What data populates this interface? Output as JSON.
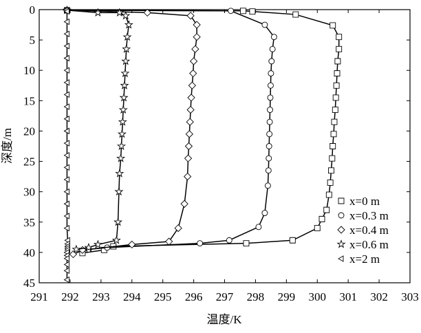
{
  "chart_data": {
    "type": "line",
    "xlabel": "温度/K",
    "ylabel": "深度/m",
    "xlim": [
      291,
      303
    ],
    "xticks": [
      291,
      292,
      293,
      294,
      295,
      296,
      297,
      298,
      299,
      300,
      301,
      302,
      303
    ],
    "ylim": [
      0,
      45
    ],
    "yticks": [
      0,
      5,
      10,
      15,
      20,
      25,
      30,
      35,
      40,
      45
    ],
    "y_inverted": true,
    "legend": "lower right",
    "color": "#000000",
    "series": [
      {
        "name": "x=0 m",
        "marker": "square",
        "x": [
          291.9,
          297.6,
          297.9,
          299.3,
          300.5,
          300.7,
          300.7,
          300.66,
          300.64,
          300.62,
          300.6,
          300.58,
          300.55,
          300.53,
          300.5,
          300.48,
          300.45,
          300.42,
          300.38,
          300.3,
          300.15,
          300.0,
          299.2,
          297.7,
          293.4,
          293.1,
          292.4
        ],
        "y": [
          0.1,
          0.2,
          0.3,
          0.8,
          2.6,
          4.5,
          6.5,
          8.5,
          10.5,
          12.5,
          14.5,
          16.5,
          18.5,
          20.5,
          22.5,
          24.5,
          26.5,
          28.5,
          30.5,
          33,
          34.5,
          36,
          38,
          38.5,
          39,
          39.6,
          40.1
        ]
      },
      {
        "name": "x=0.3 m",
        "marker": "circle",
        "x": [
          291.9,
          297.2,
          298.3,
          298.6,
          298.55,
          298.52,
          298.5,
          298.49,
          298.48,
          298.47,
          298.46,
          298.45,
          298.44,
          298.43,
          298.42,
          298.4,
          298.3,
          298.1,
          297.15,
          296.2,
          293.2,
          292.6
        ],
        "y": [
          0.1,
          0.2,
          2.5,
          4.5,
          6.5,
          8.5,
          10.5,
          12.5,
          14.5,
          16.5,
          18.5,
          20.5,
          22.5,
          24.5,
          26.5,
          29,
          33.5,
          35.8,
          38,
          38.5,
          39.2,
          39.5
        ]
      },
      {
        "name": "x=0.4 m",
        "marker": "diamond",
        "x": [
          291.9,
          294.5,
          295.9,
          296.1,
          296.1,
          296.05,
          296.0,
          295.98,
          295.95,
          295.92,
          295.9,
          295.88,
          295.86,
          295.84,
          295.82,
          295.8,
          295.7,
          295.5,
          295.2,
          294.0,
          292.4,
          292.1
        ],
        "y": [
          0.1,
          0.5,
          1,
          2.5,
          4.5,
          6.5,
          8.5,
          10.5,
          12.5,
          14.5,
          16.5,
          18.5,
          20.5,
          22.5,
          24.5,
          27.5,
          32,
          36,
          38.2,
          38.7,
          39.6,
          40.3
        ]
      },
      {
        "name": "x=0.6 m",
        "marker": "star",
        "x": [
          291.9,
          292.9,
          293.6,
          293.8,
          293.9,
          293.85,
          293.82,
          293.8,
          293.78,
          293.76,
          293.74,
          293.72,
          293.7,
          293.68,
          293.66,
          293.64,
          293.6,
          293.58,
          293.55,
          293.5,
          292.9,
          292.6,
          292.2
        ],
        "y": [
          0.1,
          0.5,
          0.5,
          1,
          2.5,
          4.5,
          6.5,
          8.5,
          10.5,
          12.5,
          14.5,
          16.5,
          18.5,
          20.5,
          22.5,
          24.5,
          27,
          30,
          35,
          38,
          38.7,
          39.2,
          39.5
        ]
      },
      {
        "name": "x=2 m",
        "marker": "triangle-left",
        "x": [
          291.9,
          291.9,
          291.9,
          291.9,
          291.9,
          291.9,
          291.9,
          291.9,
          291.9,
          291.9,
          291.9,
          291.9,
          291.9,
          291.9,
          291.9,
          291.9,
          291.9,
          291.9,
          291.9,
          291.92,
          291.92,
          291.92,
          291.92,
          291.92,
          291.9,
          291.9,
          291.9,
          291.9,
          291.9,
          291.9
        ],
        "y": [
          0.3,
          2,
          4,
          6,
          8,
          10,
          12,
          14,
          16,
          18,
          20,
          22,
          24,
          26,
          28,
          30,
          32,
          34,
          36,
          38,
          38.6,
          39,
          39.3,
          39.6,
          40,
          40.5,
          41,
          42,
          43,
          44.5
        ]
      }
    ]
  }
}
